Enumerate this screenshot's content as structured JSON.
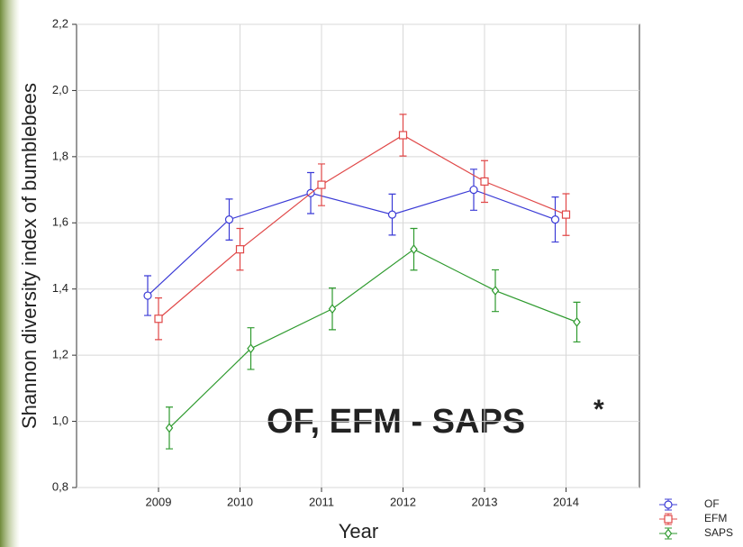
{
  "chart_data": {
    "type": "line",
    "xlabel": "Year",
    "ylabel": "Shannon diversity index of bumblebees",
    "annotation": "OF, EFM - SAPS",
    "annotation_mark": "*",
    "categories": [
      "2009",
      "2010",
      "2011",
      "2012",
      "2013",
      "2014"
    ],
    "series": [
      {
        "name": "OF",
        "color": "#3b3bd6",
        "marker": "circle",
        "values": [
          1.38,
          1.61,
          1.69,
          1.625,
          1.7,
          1.61
        ],
        "errors": [
          0.06,
          0.062,
          0.062,
          0.062,
          0.062,
          0.068
        ]
      },
      {
        "name": "EFM",
        "color": "#e04848",
        "marker": "square",
        "values": [
          1.31,
          1.52,
          1.715,
          1.865,
          1.725,
          1.625
        ],
        "errors": [
          0.063,
          0.063,
          0.063,
          0.063,
          0.063,
          0.063
        ]
      },
      {
        "name": "SAPS",
        "color": "#2e9a2e",
        "marker": "diamond",
        "values": [
          0.98,
          1.22,
          1.34,
          1.52,
          1.395,
          1.3
        ],
        "errors": [
          0.063,
          0.063,
          0.063,
          0.063,
          0.063,
          0.06
        ]
      }
    ],
    "ylim": [
      0.8,
      2.2
    ],
    "yticks": [
      {
        "value": 0.8,
        "label": "0,8"
      },
      {
        "value": 1.0,
        "label": "1,0"
      },
      {
        "value": 1.2,
        "label": "1,2"
      },
      {
        "value": 1.4,
        "label": "1,4"
      },
      {
        "value": 1.6,
        "label": "1,6"
      },
      {
        "value": 1.8,
        "label": "1,8"
      },
      {
        "value": 2.0,
        "label": "2,0"
      },
      {
        "value": 2.2,
        "label": "2,2"
      }
    ],
    "grid": true
  }
}
